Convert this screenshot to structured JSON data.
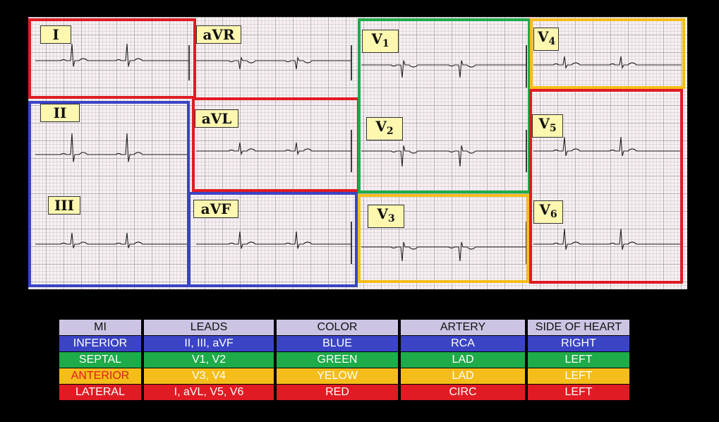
{
  "ecg": {
    "leads": {
      "I": "I",
      "II": "II",
      "III": "III",
      "aVR": "aVR",
      "aVL": "aVL",
      "aVF": "aVF",
      "V1": "V",
      "V2": "V",
      "V3": "V",
      "V4": "V",
      "V5": "V",
      "V6": "V",
      "V1_sub": "1",
      "V2_sub": "2",
      "V3_sub": "3",
      "V4_sub": "4",
      "V5_sub": "5",
      "V6_sub": "6"
    },
    "region_colors": {
      "inferior": "#3b44c4",
      "septal": "#1eab4a",
      "anterior": "#f5bd1a",
      "lateral": "#e01b24"
    }
  },
  "legend": {
    "headers": [
      "MI",
      "LEADS",
      "COLOR",
      "ARTERY",
      "SIDE OF HEART"
    ],
    "rows": [
      {
        "mi": "INFERIOR",
        "leads": "II, III, aVF",
        "color": "BLUE",
        "artery": "RCA",
        "side": "RIGHT",
        "bg": "#3b44c4",
        "mi_text": "#ffffff"
      },
      {
        "mi": "SEPTAL",
        "leads": "V1, V2",
        "color": "GREEN",
        "artery": "LAD",
        "side": "LEFT",
        "bg": "#1eab4a",
        "mi_text": "#ffffff"
      },
      {
        "mi": "ANTERIOR",
        "leads": "V3, V4",
        "color": "YELOW",
        "artery": "LAD",
        "side": "LEFT",
        "bg": "#f5bd1a",
        "mi_text": "#e01b24"
      },
      {
        "mi": "LATERAL",
        "leads": "I, aVL, V5, V6",
        "color": "RED",
        "artery": "CIRC",
        "side": "LEFT",
        "bg": "#e01b24",
        "mi_text": "#ffffff"
      }
    ]
  }
}
